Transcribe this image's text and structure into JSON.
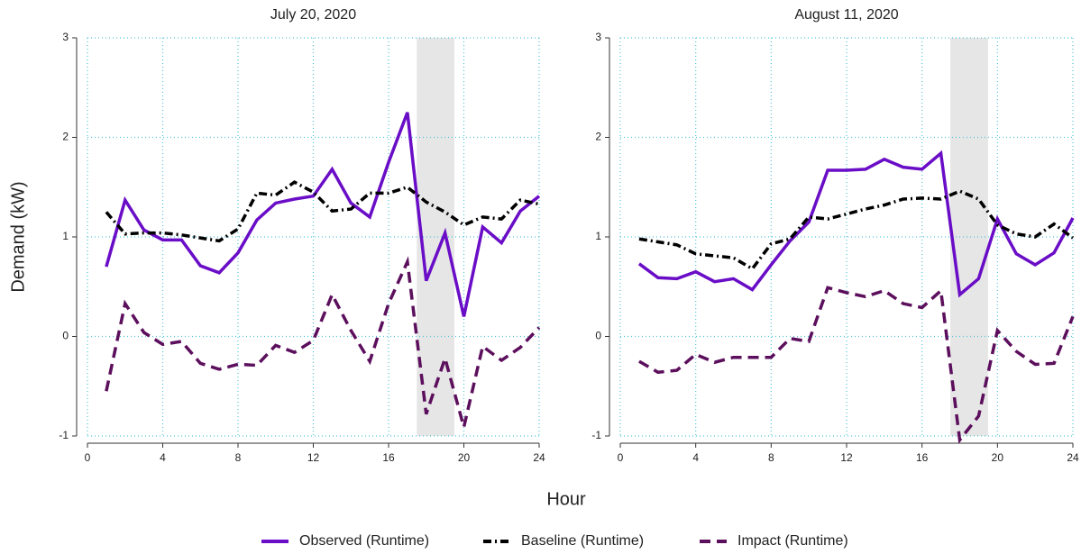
{
  "x_label": "Hour",
  "y_label": "Demand (kW)",
  "chart_data": [
    {
      "type": "line",
      "title": "July 20, 2020",
      "x": [
        1,
        2,
        3,
        4,
        5,
        6,
        7,
        8,
        9,
        10,
        11,
        12,
        13,
        14,
        15,
        16,
        17,
        18,
        19,
        20,
        21,
        22,
        23,
        24
      ],
      "series": [
        {
          "name": "Observed (Runtime)",
          "color": "#6a0dc7",
          "line_style": "solid",
          "values": [
            0.7,
            1.37,
            1.07,
            0.97,
            0.97,
            0.71,
            0.64,
            0.84,
            1.17,
            1.34,
            1.38,
            1.41,
            1.68,
            1.34,
            1.2,
            1.75,
            2.25,
            0.56,
            1.04,
            0.2,
            1.1,
            0.94,
            1.26,
            1.41
          ]
        },
        {
          "name": "Baseline (Runtime)",
          "color": "#000000",
          "line_style": "dashdot",
          "values": [
            1.25,
            1.03,
            1.04,
            1.04,
            1.02,
            0.99,
            0.96,
            1.08,
            1.44,
            1.42,
            1.55,
            1.45,
            1.26,
            1.28,
            1.44,
            1.44,
            1.5,
            1.35,
            1.25,
            1.12,
            1.2,
            1.18,
            1.37,
            1.33
          ]
        },
        {
          "name": "Impact (Runtime)",
          "color": "#5c0f5c",
          "line_style": "dashed",
          "values": [
            -0.55,
            0.33,
            0.04,
            -0.08,
            -0.05,
            -0.27,
            -0.33,
            -0.28,
            -0.29,
            -0.09,
            -0.16,
            -0.04,
            0.42,
            0.06,
            -0.25,
            0.33,
            0.75,
            -0.78,
            -0.22,
            -0.91,
            -0.1,
            -0.24,
            -0.11,
            0.09
          ]
        }
      ],
      "shaded_region": [
        17.5,
        19.5
      ],
      "xlim": [
        0,
        24
      ],
      "xticks": [
        0,
        4,
        8,
        12,
        16,
        20,
        24
      ],
      "ylim": [
        -1,
        3
      ],
      "yticks": [
        -1,
        0,
        1,
        2,
        3
      ],
      "grid": true
    },
    {
      "type": "line",
      "title": "August 11, 2020",
      "x": [
        1,
        2,
        3,
        4,
        5,
        6,
        7,
        8,
        9,
        10,
        11,
        12,
        13,
        14,
        15,
        16,
        17,
        18,
        19,
        20,
        21,
        22,
        23,
        24
      ],
      "series": [
        {
          "name": "Observed (Runtime)",
          "color": "#6a0dc7",
          "line_style": "solid",
          "values": [
            0.73,
            0.59,
            0.58,
            0.65,
            0.55,
            0.58,
            0.47,
            0.72,
            0.96,
            1.15,
            1.67,
            1.67,
            1.68,
            1.78,
            1.7,
            1.68,
            1.84,
            0.42,
            0.58,
            1.18,
            0.83,
            0.72,
            0.84,
            1.19
          ]
        },
        {
          "name": "Baseline (Runtime)",
          "color": "#000000",
          "line_style": "dashdot",
          "values": [
            0.98,
            0.95,
            0.92,
            0.83,
            0.81,
            0.79,
            0.68,
            0.93,
            0.98,
            1.2,
            1.18,
            1.23,
            1.28,
            1.32,
            1.38,
            1.39,
            1.38,
            1.46,
            1.38,
            1.12,
            1.03,
            1.0,
            1.13,
            0.99
          ]
        },
        {
          "name": "Impact (Runtime)",
          "color": "#5c0f5c",
          "line_style": "dashed",
          "values": [
            -0.25,
            -0.36,
            -0.34,
            -0.18,
            -0.26,
            -0.21,
            -0.21,
            -0.21,
            -0.02,
            -0.05,
            0.49,
            0.44,
            0.4,
            0.46,
            0.33,
            0.29,
            0.46,
            -1.04,
            -0.8,
            0.06,
            -0.15,
            -0.28,
            -0.27,
            0.2
          ]
        }
      ],
      "shaded_region": [
        17.5,
        19.5
      ],
      "xlim": [
        0,
        24
      ],
      "xticks": [
        0,
        4,
        8,
        12,
        16,
        20,
        24
      ],
      "ylim": [
        -1,
        3
      ],
      "yticks": [
        -1,
        0,
        1,
        2,
        3
      ],
      "grid": true
    }
  ]
}
